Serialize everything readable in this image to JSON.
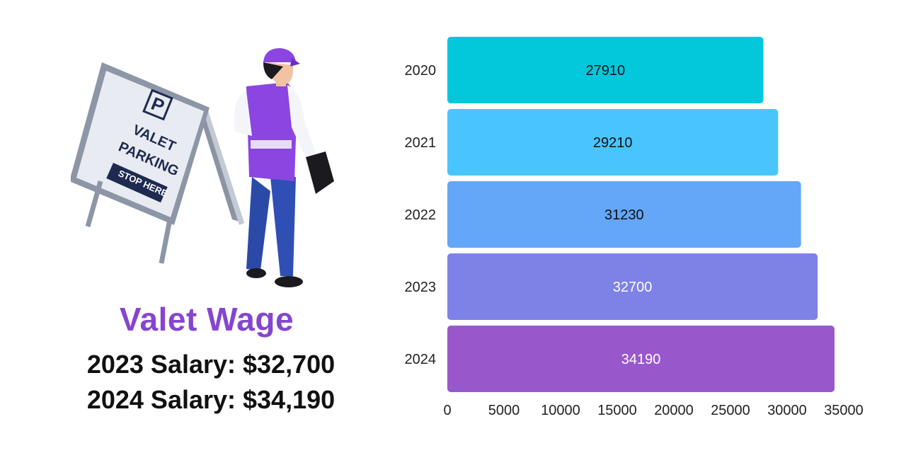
{
  "heading": {
    "title": "Valet Wage",
    "salary_2023": "2023 Salary: $32,700",
    "salary_2024": "2024 Salary: $34,190"
  },
  "sign": {
    "parking_letter": "P",
    "line1": "VALET",
    "line2": "PARKING",
    "banner": "STOP HERE"
  },
  "chart_data": {
    "type": "bar",
    "orientation": "horizontal",
    "categories": [
      "2020",
      "2021",
      "2022",
      "2023",
      "2024"
    ],
    "values": [
      27910,
      29210,
      31230,
      32700,
      34190
    ],
    "xlim": [
      0,
      35000
    ],
    "xticks": [
      0,
      5000,
      10000,
      15000,
      20000,
      25000,
      30000,
      35000
    ],
    "colors": [
      "#03c8dc",
      "#4ac4fc",
      "#64a6f7",
      "#7e81e6",
      "#9858cc"
    ],
    "label_colors": [
      "#111111",
      "#111111",
      "#111111",
      "#ffffff",
      "#ffffff"
    ],
    "grid": false,
    "legend": "none",
    "title": "",
    "xlabel": "",
    "ylabel": ""
  }
}
